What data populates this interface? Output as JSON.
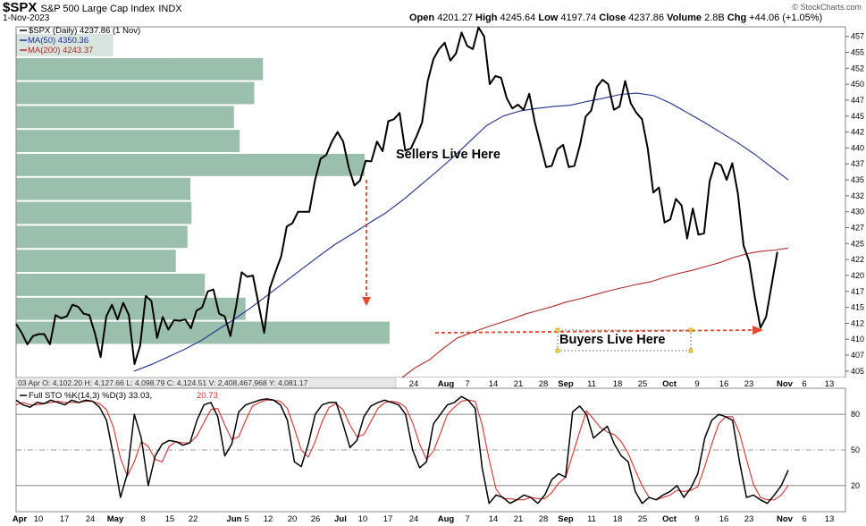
{
  "header": {
    "symbol": "$SPX",
    "name": "S&P 500 Large Cap Index",
    "exchange": "INDX",
    "date": "1-Nov-2023",
    "open_label": "Open",
    "open": "4201.27",
    "high_label": "High",
    "high": "4245.64",
    "low_label": "Low",
    "low": "4197.74",
    "close_label": "Close",
    "close": "4237.86",
    "volume_label": "Volume",
    "volume": "2.8B",
    "chg_label": "Chg",
    "chg": "+44.06 (+1.05%)",
    "credit": "© StockCharts.com"
  },
  "colors": {
    "price": "#000000",
    "ma50": "#1f2f8f",
    "ma200": "#b02a2a",
    "volume_profile": "#9bbfad",
    "stoch_k": "#000000",
    "stoch_d": "#d9302c",
    "arrow": "#e8452c"
  },
  "legend": {
    "price": "$SPX (Daily) 4237.86 (1 Nov)",
    "ma50": "MA(50) 4350.36",
    "ma200": "MA(200) 4243.37"
  },
  "annotations": {
    "sellers": "Sellers Live Here",
    "buyers": "Buyers Live Here"
  },
  "info_bar": "03 Apr O: 4,102.20   H: 4,127.66   L: 4,098.79   C: 4,124.51   V: 2,408,467,968   Y: 4,081.17",
  "stoch_legend": {
    "label": "Full STO %K(14,3) %D(3) 33.03,",
    "d_value": "20.73"
  },
  "chart_data": [
    {
      "type": "line",
      "title": "$SPX S&P 500 Large Cap Index",
      "x_ticks": [
        "Apr",
        "10",
        "17",
        "24",
        "May",
        "8",
        "15",
        "22",
        "Jun",
        "5",
        "12",
        "20",
        "26",
        "Jul",
        "10",
        "17",
        "24",
        "Aug",
        "7",
        "14",
        "21",
        "28",
        "Sep",
        "11",
        "18",
        "25",
        "Oct",
        "9",
        "16",
        "23",
        "Nov",
        "6",
        "13"
      ],
      "y_ticks": [
        "4050",
        "4075",
        "4100",
        "4125",
        "4150",
        "4175",
        "4200",
        "4225",
        "4250",
        "4275",
        "4300",
        "4325",
        "4350",
        "4375",
        "4400",
        "4425",
        "4450",
        "4475",
        "4500",
        "4525",
        "4550",
        "4575"
      ],
      "y_tick_labels": [
        "405",
        "407",
        "410",
        "412",
        "415",
        "417",
        "420",
        "422",
        "425",
        "427",
        "430",
        "432",
        "435",
        "437",
        "440",
        "442",
        "445",
        "447",
        "450",
        "452",
        "455",
        "457"
      ],
      "ylim": [
        4040,
        4590
      ],
      "grid": false,
      "legend_position": "top-left",
      "series": [
        {
          "name": "$SPX (Daily)",
          "values": [
            4124,
            4110,
            4092,
            4105,
            4108,
            4108,
            4092,
            4138,
            4133,
            4136,
            4154,
            4151,
            4140,
            4138,
            4109,
            4072,
            4136,
            4154,
            4131,
            4157,
            4138,
            4061,
            4090,
            4168,
            4160,
            4102,
            4135,
            4115,
            4130,
            4129,
            4131,
            4117,
            4145,
            4150,
            4175,
            4178,
            4140,
            4136,
            4105,
            4151,
            4205,
            4198,
            4200,
            4155,
            4110,
            4180,
            4206,
            4230,
            4277,
            4282,
            4300,
            4300,
            4300,
            4349,
            4383,
            4389,
            4410,
            4425,
            4410,
            4369,
            4341,
            4349,
            4380,
            4379,
            4410,
            4395,
            4442,
            4445,
            4455,
            4396,
            4399,
            4418,
            4440,
            4505,
            4539,
            4555,
            4565,
            4537,
            4548,
            4581,
            4560,
            4555,
            4589,
            4575,
            4500,
            4513,
            4510,
            4478,
            4462,
            4468,
            4460,
            4485,
            4440,
            4405,
            4370,
            4372,
            4398,
            4405,
            4370,
            4372,
            4405,
            4449,
            4459,
            4496,
            4507,
            4500,
            4460,
            4465,
            4505,
            4470,
            4455,
            4445,
            4400,
            4330,
            4338,
            4283,
            4288,
            4320,
            4310,
            4258,
            4305,
            4264,
            4266,
            4348,
            4377,
            4373,
            4350,
            4376,
            4328,
            4247,
            4222,
            4166,
            4118,
            4135,
            4186,
            4237
          ]
        },
        {
          "name": "MA(50)",
          "values": [
            4050,
            4060,
            4072,
            4084,
            4098,
            4115,
            4132,
            4150,
            4170,
            4190,
            4210,
            4230,
            4249,
            4265,
            4282,
            4298,
            4318,
            4340,
            4362,
            4385,
            4410,
            4435,
            4450,
            4458,
            4462,
            4465,
            4467,
            4473,
            4478,
            4484,
            4486,
            4482,
            4470,
            4455,
            4440,
            4424,
            4408,
            4390,
            4370,
            4350
          ]
        },
        {
          "name": "MA(200)",
          "values": [
            4040,
            4056,
            4068,
            4086,
            4102,
            4110,
            4118,
            4125,
            4132,
            4140,
            4146,
            4152,
            4159,
            4164,
            4170,
            4176,
            4181,
            4186,
            4190,
            4197,
            4203,
            4208,
            4214,
            4220,
            4228,
            4234,
            4238,
            4240,
            4243
          ]
        },
        {
          "name": "Volume profile",
          "values": [
            1.67,
            4.25,
            4.1,
            3.75,
            3.85,
            6.0,
            3.0,
            3.02,
            2.95,
            2.75,
            3.25,
            3.95,
            6.43
          ]
        }
      ]
    },
    {
      "type": "line",
      "title": "Full STO %K(14,3) %D(3)",
      "y_ticks": [
        "20",
        "50",
        "80"
      ],
      "ylim": [
        -2,
        102
      ],
      "series": [
        {
          "name": "%K",
          "values": [
            92,
            88,
            86,
            90,
            89,
            92,
            90,
            88,
            92,
            90,
            92,
            91,
            86,
            75,
            45,
            10,
            30,
            80,
            60,
            20,
            45,
            55,
            58,
            57,
            54,
            56,
            75,
            88,
            90,
            78,
            45,
            55,
            82,
            88,
            90,
            92,
            93,
            92,
            88,
            75,
            40,
            36,
            55,
            80,
            88,
            90,
            90,
            72,
            52,
            58,
            78,
            87,
            90,
            92,
            90,
            88,
            80,
            50,
            35,
            40,
            72,
            80,
            88,
            90,
            95,
            92,
            85,
            35,
            5,
            12,
            10,
            5,
            8,
            12,
            10,
            5,
            12,
            25,
            30,
            27,
            82,
            87,
            80,
            60,
            65,
            70,
            55,
            45,
            40,
            15,
            5,
            10,
            8,
            12,
            15,
            20,
            10,
            18,
            30,
            60,
            75,
            80,
            78,
            75,
            40,
            10,
            12,
            8,
            5,
            12,
            20,
            33
          ]
        },
        {
          "name": "%D",
          "values": [
            88,
            90,
            88,
            88,
            89,
            90,
            91,
            90,
            90,
            90,
            91,
            91,
            89,
            84,
            69,
            43,
            28,
            40,
            57,
            53,
            42,
            40,
            53,
            57,
            56,
            56,
            62,
            73,
            84,
            85,
            71,
            59,
            61,
            75,
            87,
            90,
            92,
            92,
            91,
            85,
            68,
            50,
            44,
            57,
            74,
            86,
            89,
            84,
            71,
            61,
            63,
            74,
            85,
            90,
            91,
            90,
            86,
            73,
            55,
            42,
            49,
            64,
            80,
            86,
            91,
            92,
            91,
            71,
            42,
            17,
            9,
            9,
            8,
            8,
            10,
            9,
            9,
            14,
            22,
            27,
            46,
            65,
            83,
            76,
            69,
            65,
            63,
            57,
            47,
            33,
            20,
            10,
            8,
            10,
            12,
            16,
            15,
            16,
            19,
            36,
            55,
            72,
            78,
            78,
            64,
            42,
            21,
            10,
            8,
            8,
            12,
            20
          ]
        }
      ]
    }
  ]
}
